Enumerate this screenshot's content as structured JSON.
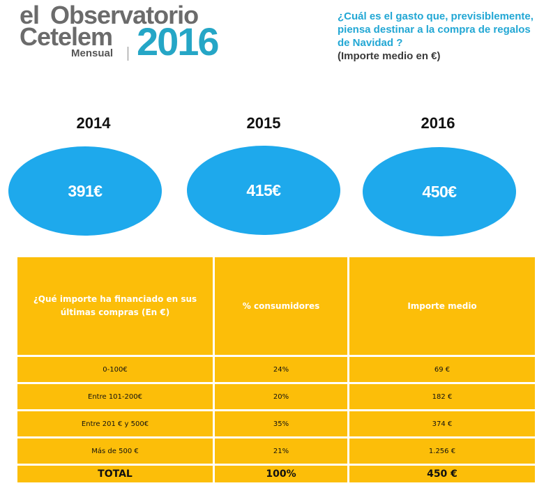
{
  "logo": {
    "line1_prefix": "el",
    "line1_main": "Observatorio",
    "line2": "Cetelem",
    "edition": "Mensual",
    "year": "2016"
  },
  "question": {
    "text": "¿Cuál es el gasto que, previsiblemente, piensa destinar a la compra de regalos de Navidad ?",
    "subtitle": "(Importe medio en €)"
  },
  "yearly": [
    {
      "year": "2014",
      "amount": "391€"
    },
    {
      "year": "2015",
      "amount": "415€"
    },
    {
      "year": "2016",
      "amount": "450€"
    }
  ],
  "colors": {
    "brand_gray": "#6b6b6b",
    "brand_blue": "#25a6c6",
    "question_blue": "#22a7d4",
    "ellipse_blue": "#1ea9ec",
    "table_yellow": "#fcbe09"
  },
  "table": {
    "headers": [
      "¿Qué importe ha financiado en sus últimas compras (En €)",
      "% consumidores",
      "Importe medio"
    ],
    "rows": [
      [
        "0-100€",
        "24%",
        "69 €"
      ],
      [
        "Entre 101-200€",
        "20%",
        "182 €"
      ],
      [
        "Entre 201 € y 500€",
        "35%",
        "374 €"
      ],
      [
        "Más de 500 €",
        "21%",
        "1.256 €"
      ]
    ],
    "total": [
      "TOTAL",
      "100%",
      "450 €"
    ]
  }
}
